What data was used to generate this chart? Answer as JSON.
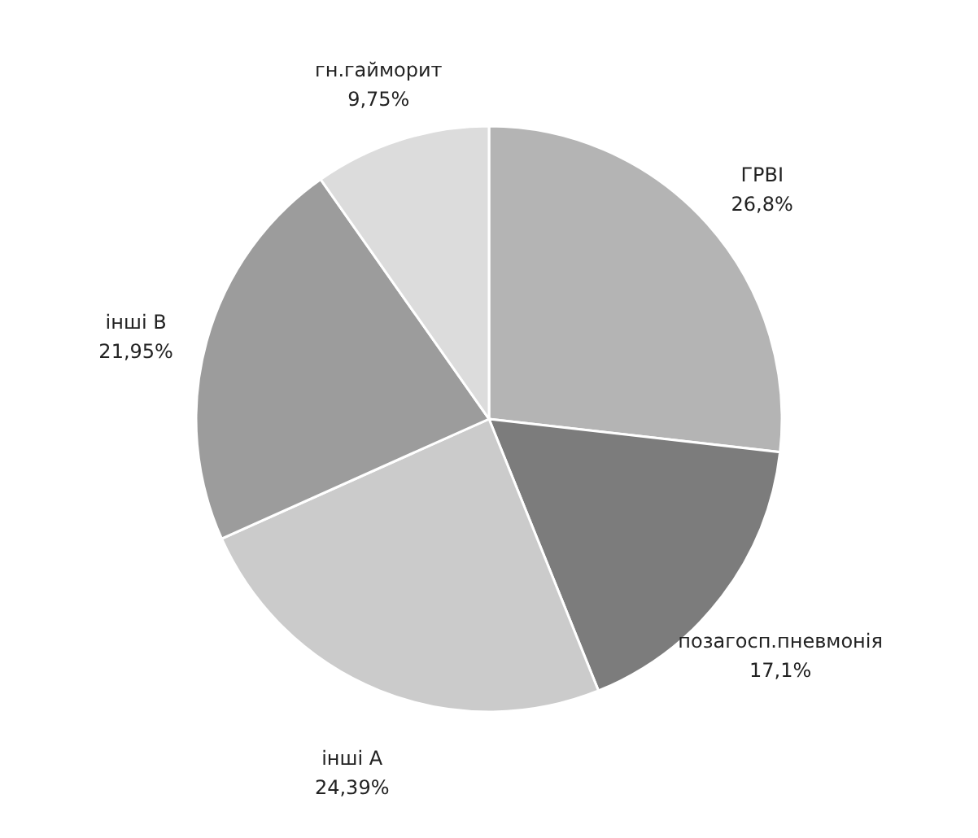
{
  "chart_data": {
    "type": "pie",
    "categories": [
      "ГРВІ",
      "позагосп.пневмонія",
      "інші А",
      "інші В",
      "гн.гайморит"
    ],
    "values": [
      26.8,
      17.1,
      24.39,
      21.95,
      9.75
    ],
    "value_labels": [
      "26,8%",
      "17,1%",
      "24,39%",
      "21,95%",
      "9,75%"
    ],
    "colors": [
      "#b4b4b4",
      "#7c7c7c",
      "#cbcbcb",
      "#9c9c9c",
      "#dcdcdc"
    ]
  }
}
